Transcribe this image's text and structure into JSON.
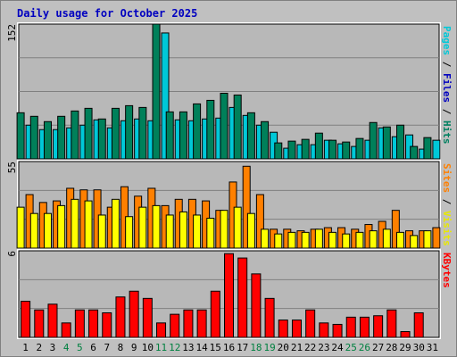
{
  "colors": {
    "background": "#C0C0C0",
    "plot_background": "#B8B8B8",
    "title": "#0000C0",
    "hits": "#00805A",
    "files": "#00C8D8",
    "pages": "#00C8D8",
    "visits": "#FFFF00",
    "sites": "#FF8000",
    "kbytes": "#FF0000",
    "weekend_tick": "#008040",
    "weekday_tick": "#000000"
  },
  "chart_data": {
    "title": "Daily usage for October 2025",
    "days": [
      "1",
      "2",
      "3",
      "4",
      "5",
      "6",
      "7",
      "8",
      "9",
      "10",
      "11",
      "12",
      "13",
      "14",
      "15",
      "16",
      "17",
      "18",
      "19",
      "20",
      "21",
      "22",
      "23",
      "24",
      "25",
      "26",
      "27",
      "28",
      "29",
      "30",
      "31"
    ],
    "weekend_days": [
      "4",
      "5",
      "11",
      "12",
      "18",
      "19",
      "25",
      "26"
    ],
    "panels": [
      {
        "type": "bar",
        "ymax_label": "152",
        "ylim": [
          0,
          152
        ],
        "legend": [
          {
            "text": "Hits",
            "color": "#008060"
          },
          {
            "text": " / ",
            "color": "#000000"
          },
          {
            "text": "Files",
            "color": "#0000C0"
          },
          {
            "text": " / ",
            "color": "#000000"
          },
          {
            "text": "Pages",
            "color": "#00C8D8"
          }
        ],
        "series": [
          {
            "name": "Hits",
            "color": "#00805A",
            "values": [
              52,
              48,
              42,
              48,
              54,
              57,
              45,
              57,
              60,
              58,
              152,
              53,
              53,
              62,
              66,
              74,
              72,
              52,
              42,
              18,
              20,
              22,
              29,
              21,
              19,
              23,
              41,
              36,
              38,
              14,
              24
            ]
          },
          {
            "name": "Files",
            "color": "#00C8D8",
            "values": [
              38,
              33,
              33,
              35,
              38,
              44,
              35,
              43,
              45,
              43,
              142,
              44,
              43,
              45,
              46,
              58,
              49,
              38,
              30,
              12,
              16,
              16,
              21,
              17,
              14,
              21,
              35,
              25,
              27,
              11,
              21
            ]
          }
        ]
      },
      {
        "type": "bar",
        "ymax_label": "55",
        "ylim": [
          0,
          55
        ],
        "legend": [
          {
            "text": "Visits",
            "color": "#E8E800"
          },
          {
            "text": " / ",
            "color": "#000000"
          },
          {
            "text": "Sites",
            "color": "#FF8000"
          }
        ],
        "series": [
          {
            "name": "Visits",
            "color": "#FFFF00",
            "values": [
              26,
              22,
              22,
              27,
              31,
              30,
              21,
              31,
              20,
              26,
              27,
              21,
              23,
              21,
              19,
              24,
              26,
              22,
              12,
              9,
              10,
              10,
              12,
              10,
              9,
              10,
              11,
              12,
              10,
              8,
              11
            ]
          },
          {
            "name": "Sites",
            "color": "#FF8000",
            "values": [
              34,
              29,
              30,
              38,
              37,
              37,
              26,
              39,
              33,
              38,
              27,
              31,
              31,
              30,
              24,
              42,
              52,
              34,
              12,
              12,
              11,
              12,
              13,
              13,
              12,
              15,
              17,
              24,
              11,
              11,
              13
            ]
          }
        ]
      },
      {
        "type": "bar",
        "ymax_label": "6",
        "ylim": [
          0,
          6
        ],
        "legend": [
          {
            "text": "KBytes",
            "color": "#FF0000"
          }
        ],
        "series": [
          {
            "name": "KBytes",
            "color": "#FF0000",
            "values": [
              2.5,
              1.9,
              2.3,
              1.0,
              1.9,
              1.9,
              1.7,
              2.8,
              3.2,
              2.7,
              1.0,
              1.6,
              1.9,
              1.9,
              3.2,
              5.8,
              5.5,
              4.4,
              2.7,
              1.2,
              1.2,
              1.9,
              1.0,
              0.9,
              1.4,
              1.4,
              1.5,
              1.9,
              0.4,
              1.7,
              0
            ]
          }
        ]
      }
    ]
  }
}
